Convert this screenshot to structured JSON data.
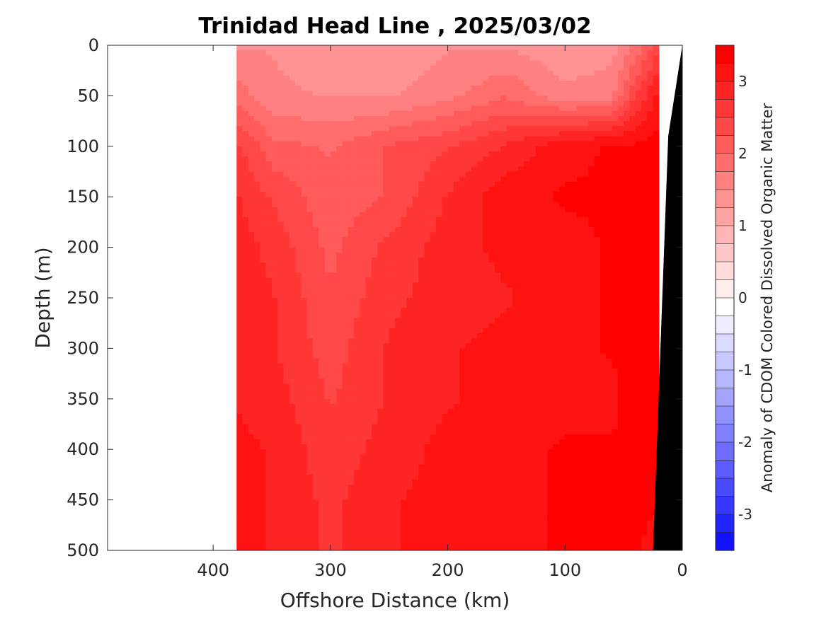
{
  "chart_data": {
    "type": "heatmap",
    "title": "Trinidad Head Line , 2025/03/02",
    "xlabel": "Offshore Distance (km)",
    "ylabel": "Depth (m)",
    "colorbar_label": "Anomaly of CDOM Colored Dissolved Organic Matter",
    "x_reversed": true,
    "y_reversed": true,
    "xlim": [
      0,
      490
    ],
    "ylim": [
      0,
      500
    ],
    "xticks": [
      400,
      300,
      200,
      100,
      0
    ],
    "yticks": [
      0,
      50,
      100,
      150,
      200,
      250,
      300,
      350,
      400,
      450,
      500
    ],
    "clim": [
      -3.5,
      3.5
    ],
    "colorbar_ticks": [
      3,
      2,
      1,
      0,
      -1,
      -2,
      -3
    ],
    "colorbar_step": 0.25,
    "colormap": "blue-white-red",
    "data_extent_km": [
      20,
      380
    ],
    "bathymetry": [
      [
        0,
        0
      ],
      [
        12,
        90
      ],
      [
        25,
        500
      ]
    ],
    "grid": false,
    "legend": "colorbar-right",
    "rows": [
      {
        "depth": 0,
        "x": [
          380,
          350,
          300,
          250,
          200,
          150,
          100,
          60,
          40,
          20
        ],
        "v": [
          1.6,
          1.6,
          1.4,
          1.4,
          1.6,
          1.6,
          1.4,
          1.5,
          1.9,
          2.6
        ]
      },
      {
        "depth": 50,
        "x": [
          380,
          350,
          300,
          250,
          200,
          150,
          100,
          60,
          40,
          20
        ],
        "v": [
          2.0,
          1.7,
          1.6,
          1.6,
          1.8,
          2.1,
          1.7,
          1.8,
          2.6,
          3.2
        ]
      },
      {
        "depth": 100,
        "x": [
          380,
          350,
          300,
          250,
          200,
          150,
          100,
          60,
          40,
          20
        ],
        "v": [
          2.7,
          2.2,
          2.1,
          2.4,
          2.6,
          2.9,
          3.3,
          3.4,
          3.4,
          3.5
        ]
      },
      {
        "depth": 150,
        "x": [
          380,
          350,
          300,
          250,
          200,
          150,
          100,
          60,
          40,
          20
        ],
        "v": [
          2.9,
          2.6,
          2.2,
          2.4,
          2.9,
          3.3,
          3.4,
          3.4,
          3.5,
          3.5
        ]
      },
      {
        "depth": 200,
        "x": [
          380,
          350,
          300,
          250,
          200,
          150,
          100,
          60,
          40,
          20
        ],
        "v": [
          3.0,
          2.8,
          2.3,
          2.7,
          3.0,
          3.2,
          3.3,
          3.4,
          3.4,
          3.5
        ]
      },
      {
        "depth": 250,
        "x": [
          380,
          350,
          300,
          250,
          200,
          150,
          100,
          60,
          40,
          20
        ],
        "v": [
          3.0,
          2.9,
          2.4,
          2.8,
          3.0,
          3.1,
          3.3,
          3.4,
          3.4,
          3.5
        ]
      },
      {
        "depth": 300,
        "x": [
          380,
          350,
          300,
          250,
          200,
          150,
          100,
          60,
          40,
          20
        ],
        "v": [
          3.1,
          2.9,
          2.5,
          2.9,
          3.1,
          3.2,
          3.3,
          3.4,
          3.5,
          3.5
        ]
      },
      {
        "depth": 350,
        "x": [
          380,
          350,
          300,
          250,
          200,
          150,
          100,
          60,
          40,
          20
        ],
        "v": [
          3.1,
          3.0,
          2.6,
          2.9,
          3.1,
          3.2,
          3.3,
          3.3,
          3.5,
          3.5
        ]
      },
      {
        "depth": 400,
        "x": [
          380,
          350,
          300,
          250,
          200,
          150,
          100,
          60,
          40,
          20
        ],
        "v": [
          3.2,
          3.1,
          2.7,
          3.0,
          3.2,
          3.3,
          3.4,
          3.4,
          3.5,
          3.5
        ]
      },
      {
        "depth": 450,
        "x": [
          380,
          350,
          300,
          250,
          200,
          150,
          100,
          60,
          40,
          20
        ],
        "v": [
          3.2,
          3.1,
          2.8,
          3.1,
          3.2,
          3.3,
          3.4,
          3.4,
          3.5,
          3.5
        ]
      },
      {
        "depth": 500,
        "x": [
          380,
          350,
          300,
          250,
          200,
          150,
          100,
          60,
          40,
          20
        ],
        "v": [
          3.2,
          3.1,
          2.8,
          3.1,
          3.2,
          3.3,
          3.4,
          3.4,
          3.5,
          3.0
        ]
      }
    ]
  }
}
